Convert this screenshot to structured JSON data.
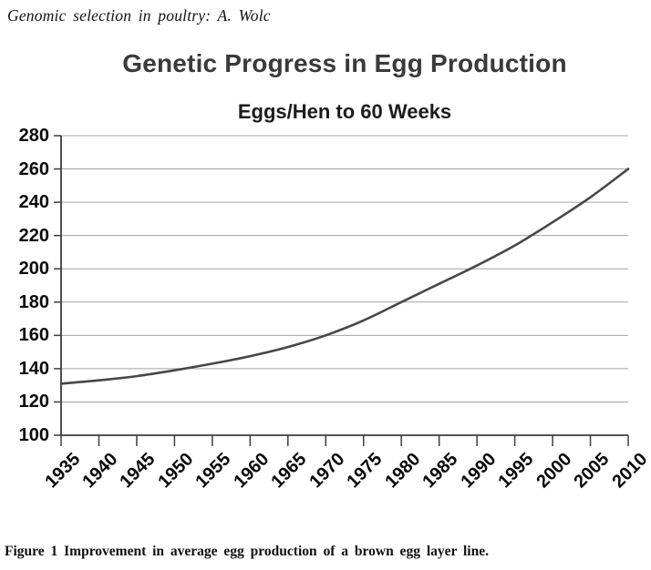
{
  "page": {
    "running_head": "Genomic selection in poultry: A. Wolc",
    "caption": "Figure 1 Improvement in average egg production of a brown egg layer line."
  },
  "chart_data": {
    "type": "line",
    "title": "Genetic Progress in Egg Production",
    "subtitle": "Eggs/Hen to 60 Weeks",
    "xlabel": "",
    "ylabel": "",
    "x": [
      1935,
      1940,
      1945,
      1950,
      1955,
      1960,
      1965,
      1970,
      1975,
      1980,
      1985,
      1990,
      1995,
      2000,
      2005,
      2010
    ],
    "values": [
      131,
      133,
      135.5,
      139,
      143,
      147.5,
      153,
      160,
      169,
      180,
      191,
      202,
      214,
      228,
      243,
      260
    ],
    "xlim": [
      1935,
      2010
    ],
    "ylim": [
      100,
      280
    ],
    "x_ticks": [
      1935,
      1940,
      1945,
      1950,
      1955,
      1960,
      1965,
      1970,
      1975,
      1980,
      1985,
      1990,
      1995,
      2000,
      2005,
      2010
    ],
    "y_ticks": [
      100,
      120,
      140,
      160,
      180,
      200,
      220,
      240,
      260,
      280
    ],
    "grid": "horizontal",
    "legend": "none",
    "line_color": "#474747",
    "grid_color": "#a3a3a3",
    "axis_color": "#3d3d3d"
  }
}
